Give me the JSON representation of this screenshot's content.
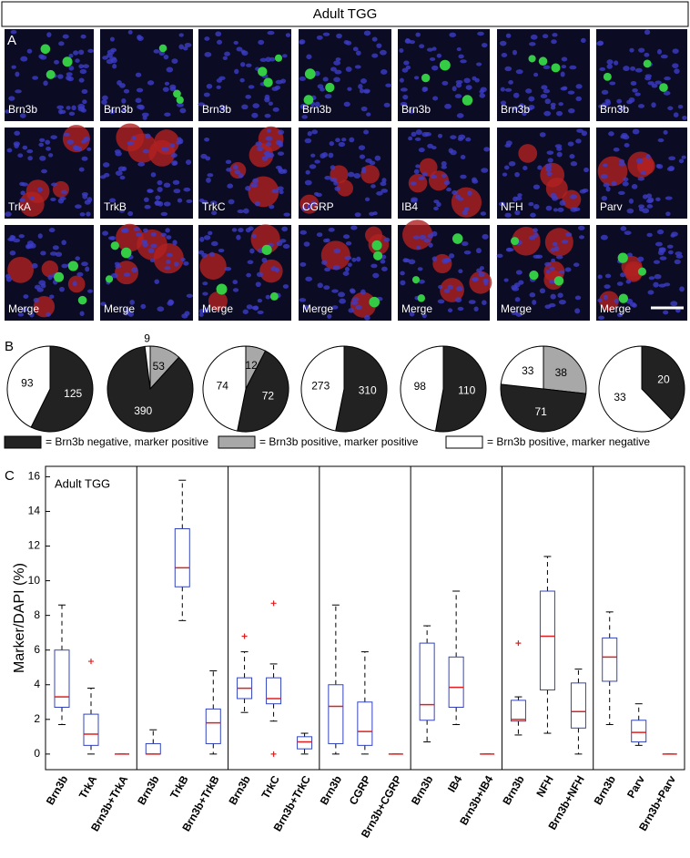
{
  "title": "Adult TGG",
  "panels": [
    "A",
    "B",
    "C"
  ],
  "images": {
    "rows": [
      [
        "Brn3b",
        "Brn3b",
        "Brn3b",
        "Brn3b",
        "Brn3b",
        "Brn3b",
        "Brn3b"
      ],
      [
        "TrkA",
        "TrkB",
        "TrkC",
        "CGRP",
        "IB4",
        "NFH",
        "Parv"
      ],
      [
        "Merge",
        "Merge",
        "Merge",
        "Merge",
        "Merge",
        "Merge",
        "Merge"
      ]
    ]
  },
  "legend": [
    {
      "label": "= Brn3b negative, marker positive",
      "color": "#222222"
    },
    {
      "label": "= Brn3b positive, marker positive",
      "color": "#a8a8a8"
    },
    {
      "label": "= Brn3b positive, marker negative",
      "color": "#ffffff"
    }
  ],
  "chart_data": [
    {
      "type": "pie",
      "values": [
        125,
        93
      ],
      "colors": [
        "#222222",
        "#ffffff"
      ]
    },
    {
      "type": "pie",
      "values": [
        53,
        390,
        9
      ],
      "colors": [
        "#a8a8a8",
        "#222222",
        "#ffffff"
      ]
    },
    {
      "type": "pie",
      "values": [
        12,
        72,
        74
      ],
      "colors": [
        "#a8a8a8",
        "#222222",
        "#ffffff"
      ]
    },
    {
      "type": "pie",
      "values": [
        310,
        273
      ],
      "colors": [
        "#222222",
        "#ffffff"
      ]
    },
    {
      "type": "pie",
      "values": [
        110,
        98
      ],
      "colors": [
        "#222222",
        "#ffffff"
      ]
    },
    {
      "type": "pie",
      "values": [
        38,
        71,
        33
      ],
      "colors": [
        "#a8a8a8",
        "#222222",
        "#ffffff"
      ]
    },
    {
      "type": "pie",
      "values": [
        20,
        33
      ],
      "colors": [
        "#222222",
        "#ffffff"
      ]
    },
    {
      "type": "box",
      "ylabel": "Marker/DAPI (%)",
      "annotation": "Adult TGG",
      "ylim": [
        -0.9,
        16.6
      ],
      "yticks": [
        0,
        2,
        4,
        6,
        8,
        10,
        12,
        14,
        16
      ],
      "box_color": "#3344bb",
      "median_color": "#e02020",
      "categories": [
        "Brn3b",
        "TrkA",
        "Brn3b+TrkA",
        "Brn3b",
        "TrkB",
        "Brn3b+TrkB",
        "Brn3b",
        "TrkC",
        "Brn3b+TrkC",
        "Brn3b",
        "CGRP",
        "Brn3b+CGRP",
        "Brn3b",
        "IB4",
        "Brn3b+IB4",
        "Brn3b",
        "NFH",
        "Brn3b+NFH",
        "Brn3b",
        "Parv",
        "Brn3b+Parv"
      ],
      "min": [
        1.7,
        0,
        0,
        0,
        7.7,
        0,
        2.4,
        1.9,
        0,
        0,
        0,
        0,
        0.7,
        1.7,
        0,
        1.1,
        1.2,
        0,
        1.7,
        0.5,
        0
      ],
      "q1": [
        2.7,
        0.5,
        0,
        0,
        9.65,
        0.6,
        3.2,
        2.9,
        0.3,
        0.6,
        0.5,
        0,
        1.95,
        2.7,
        0,
        1.9,
        3.7,
        1.5,
        4.2,
        0.7,
        0
      ],
      "median": [
        3.3,
        1.15,
        0,
        0,
        10.75,
        1.8,
        3.8,
        3.2,
        0.7,
        2.75,
        1.3,
        0,
        2.85,
        3.85,
        0,
        2.0,
        6.8,
        2.45,
        5.6,
        1.25,
        0
      ],
      "q3": [
        6.0,
        2.3,
        0,
        0.6,
        13.0,
        2.6,
        4.4,
        4.4,
        1.0,
        4.0,
        3.0,
        0,
        6.4,
        5.6,
        0,
        3.1,
        9.4,
        4.1,
        6.7,
        1.95,
        0
      ],
      "max": [
        8.6,
        3.8,
        0,
        1.4,
        15.8,
        4.8,
        5.9,
        5.2,
        1.2,
        8.6,
        5.9,
        0,
        7.4,
        9.4,
        0,
        3.3,
        11.4,
        4.9,
        8.2,
        2.9,
        0
      ],
      "outliers": [
        [],
        [
          5.35
        ],
        [],
        [],
        [],
        [],
        [
          6.8
        ],
        [
          8.7,
          0
        ],
        [],
        [],
        [],
        [],
        [],
        [],
        [],
        [
          6.4
        ],
        [],
        [],
        [],
        [],
        []
      ]
    }
  ]
}
